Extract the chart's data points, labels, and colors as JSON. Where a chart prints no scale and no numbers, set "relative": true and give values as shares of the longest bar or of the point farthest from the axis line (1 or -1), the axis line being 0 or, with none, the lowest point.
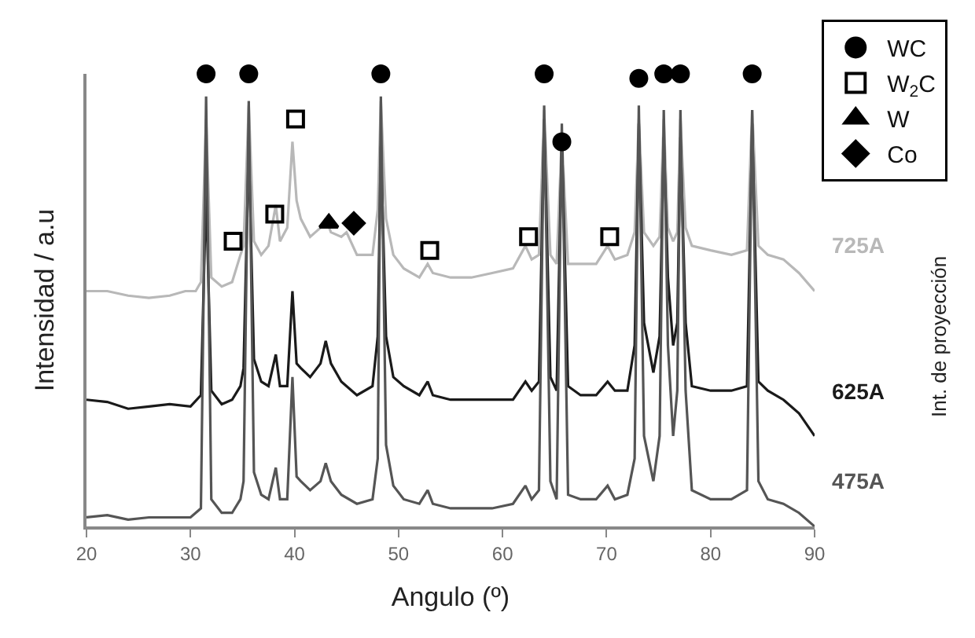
{
  "chart_data": {
    "type": "line",
    "relative": true,
    "xlabel": "Angulo (º)",
    "ylabel": "Intensidad / a.u",
    "y2label": "Int. de proyección",
    "xlim": [
      20,
      90
    ],
    "xticks": [
      20,
      30,
      40,
      50,
      60,
      70,
      80,
      90
    ],
    "legend": "top right",
    "series": [
      {
        "name": "725A",
        "color": "#b8b8b8",
        "x": [
          20,
          22,
          24,
          26,
          28,
          29.5,
          30.5,
          31.0,
          31.5,
          32.0,
          33,
          34,
          34.8,
          35.1,
          35.6,
          36.1,
          36.8,
          37.5,
          38.2,
          38.6,
          39.3,
          39.8,
          40.2,
          40.6,
          41.5,
          42.5,
          43.0,
          43.5,
          44.5,
          45,
          46,
          47.5,
          48.0,
          48.3,
          48.8,
          49.5,
          50.5,
          52,
          52.8,
          53.3,
          55,
          57,
          59,
          61,
          62.2,
          62.8,
          63.5,
          64.0,
          64.6,
          65.2,
          65.7,
          66.3,
          67.5,
          69,
          70.1,
          70.8,
          72,
          72.7,
          73.1,
          73.6,
          74.5,
          75.1,
          75.5,
          75.9,
          76.4,
          76.8,
          77.1,
          77.6,
          78.2,
          80,
          82,
          83.5,
          84.0,
          84.6,
          85.5,
          87,
          88.5,
          90
        ],
        "values": [
          0.52,
          0.52,
          0.51,
          0.505,
          0.51,
          0.52,
          0.52,
          0.54,
          0.9,
          0.55,
          0.53,
          0.54,
          0.6,
          0.62,
          0.93,
          0.63,
          0.6,
          0.62,
          0.71,
          0.63,
          0.66,
          0.85,
          0.72,
          0.68,
          0.64,
          0.66,
          0.68,
          0.65,
          0.64,
          0.65,
          0.6,
          0.6,
          0.7,
          0.94,
          0.68,
          0.6,
          0.57,
          0.55,
          0.58,
          0.56,
          0.55,
          0.55,
          0.56,
          0.57,
          0.62,
          0.59,
          0.6,
          0.92,
          0.6,
          0.58,
          0.86,
          0.58,
          0.58,
          0.58,
          0.62,
          0.59,
          0.6,
          0.65,
          0.9,
          0.65,
          0.62,
          0.64,
          0.9,
          0.66,
          0.63,
          0.65,
          0.9,
          0.66,
          0.62,
          0.61,
          0.6,
          0.61,
          0.92,
          0.62,
          0.6,
          0.59,
          0.56,
          0.52
        ]
      },
      {
        "name": "625A",
        "color": "#1a1a1a",
        "x": [
          20,
          22,
          24,
          26,
          28,
          30,
          31.0,
          31.5,
          32.0,
          33,
          34,
          34.8,
          35.1,
          35.6,
          36.1,
          36.8,
          37.5,
          38.2,
          38.6,
          39.3,
          39.8,
          40.2,
          40.6,
          41.5,
          42.5,
          43.0,
          43.5,
          44.5,
          46,
          47.5,
          48.0,
          48.3,
          48.8,
          49.5,
          50.5,
          52,
          52.8,
          53.3,
          55,
          57,
          59,
          61,
          62.2,
          62.8,
          63.5,
          64.0,
          64.6,
          65.2,
          65.7,
          66.3,
          67.5,
          69,
          70.1,
          70.8,
          72,
          72.7,
          73.1,
          73.6,
          74.5,
          75.1,
          75.5,
          75.9,
          76.4,
          76.8,
          77.1,
          77.6,
          78.2,
          80,
          82,
          83.5,
          84.0,
          84.6,
          85.5,
          87,
          88.5,
          90
        ],
        "values": [
          0.28,
          0.275,
          0.26,
          0.265,
          0.27,
          0.265,
          0.29,
          0.74,
          0.3,
          0.27,
          0.28,
          0.31,
          0.35,
          0.84,
          0.37,
          0.32,
          0.31,
          0.38,
          0.31,
          0.31,
          0.52,
          0.36,
          0.35,
          0.33,
          0.36,
          0.41,
          0.36,
          0.32,
          0.29,
          0.31,
          0.42,
          0.84,
          0.42,
          0.33,
          0.31,
          0.29,
          0.32,
          0.29,
          0.28,
          0.28,
          0.28,
          0.28,
          0.32,
          0.3,
          0.32,
          0.9,
          0.33,
          0.3,
          0.86,
          0.31,
          0.29,
          0.29,
          0.32,
          0.3,
          0.3,
          0.4,
          0.89,
          0.45,
          0.34,
          0.42,
          0.86,
          0.55,
          0.4,
          0.45,
          0.86,
          0.45,
          0.31,
          0.3,
          0.3,
          0.31,
          0.89,
          0.32,
          0.3,
          0.28,
          0.25,
          0.2
        ]
      },
      {
        "name": "475A",
        "color": "#555555",
        "x": [
          20,
          22,
          24,
          26,
          28,
          30,
          31.0,
          31.5,
          32.0,
          33,
          34,
          34.8,
          35.1,
          35.6,
          36.1,
          36.8,
          37.5,
          38.2,
          38.6,
          39.3,
          39.8,
          40.2,
          40.6,
          41.5,
          42.5,
          43.0,
          43.5,
          44.5,
          46,
          47.5,
          48.0,
          48.3,
          48.8,
          49.5,
          50.5,
          52,
          52.8,
          53.3,
          55,
          57,
          59,
          61,
          62.2,
          62.8,
          63.5,
          64.0,
          64.6,
          65.2,
          65.7,
          66.3,
          67.5,
          69,
          70.1,
          70.8,
          72,
          72.7,
          73.1,
          73.6,
          74.5,
          75.1,
          75.5,
          75.9,
          76.4,
          76.8,
          77.1,
          77.6,
          78.2,
          80,
          82,
          83.5,
          84.0,
          84.6,
          85.5,
          87,
          88.5,
          90
        ],
        "values": [
          0.02,
          0.025,
          0.015,
          0.02,
          0.02,
          0.02,
          0.04,
          0.95,
          0.06,
          0.03,
          0.03,
          0.06,
          0.1,
          0.94,
          0.12,
          0.07,
          0.06,
          0.13,
          0.06,
          0.06,
          0.33,
          0.11,
          0.1,
          0.08,
          0.1,
          0.14,
          0.1,
          0.07,
          0.05,
          0.06,
          0.15,
          0.95,
          0.18,
          0.09,
          0.06,
          0.05,
          0.08,
          0.05,
          0.04,
          0.04,
          0.04,
          0.05,
          0.09,
          0.06,
          0.08,
          0.93,
          0.1,
          0.06,
          0.89,
          0.07,
          0.06,
          0.06,
          0.09,
          0.06,
          0.07,
          0.15,
          0.93,
          0.2,
          0.1,
          0.2,
          0.92,
          0.4,
          0.2,
          0.3,
          0.92,
          0.3,
          0.08,
          0.06,
          0.06,
          0.08,
          0.92,
          0.1,
          0.06,
          0.05,
          0.03,
          0.0
        ]
      },
      {
        "name": "WC",
        "type": "scatter",
        "marker": "circle",
        "color": "#000000",
        "x": [
          31.5,
          35.6,
          48.3,
          64.0,
          65.7,
          73.1,
          75.5,
          77.1,
          84.0
        ],
        "values": [
          1.0,
          1.0,
          1.0,
          1.0,
          0.85,
          0.99,
          1.0,
          1.0,
          1.0
        ]
      },
      {
        "name": "W$_{2}$C",
        "type": "scatter",
        "marker": "square",
        "color": "#000000",
        "x": [
          34.1,
          38.1,
          40.1,
          53.0,
          62.5,
          70.3
        ],
        "values": [
          0.63,
          0.69,
          0.9,
          0.61,
          0.64,
          0.64
        ]
      },
      {
        "name": "W",
        "type": "scatter",
        "marker": "triangle",
        "color": "#000000",
        "x": [
          43.3
        ],
        "values": [
          0.67
        ]
      },
      {
        "name": "Co",
        "type": "scatter",
        "marker": "diamond",
        "color": "#000000",
        "x": [
          45.7
        ],
        "values": [
          0.67
        ]
      }
    ]
  }
}
